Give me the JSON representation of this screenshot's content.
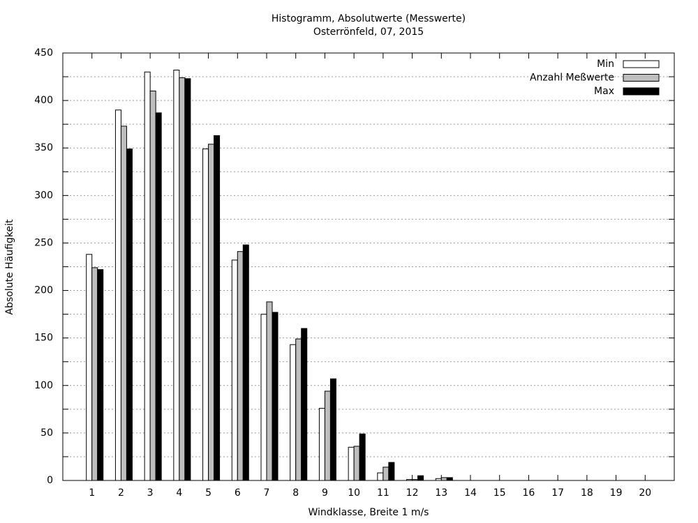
{
  "chart_data": {
    "type": "bar",
    "title": "Histogramm, Absolutwerte (Messwerte)",
    "subtitle": "Osterrönfeld, 07, 2015",
    "x_label": "Windklasse, Breite 1 m/s",
    "y_label": "Absolute Häufigkeit",
    "x": [
      1,
      2,
      3,
      4,
      5,
      6,
      7,
      8,
      9,
      10,
      11,
      12,
      13,
      14,
      15,
      16,
      17,
      18,
      19,
      20
    ],
    "xlim": [
      0,
      21
    ],
    "xticks": [
      1,
      2,
      3,
      4,
      5,
      6,
      7,
      8,
      9,
      10,
      11,
      12,
      13,
      14,
      15,
      16,
      17,
      18,
      19,
      20
    ],
    "ylim": [
      0,
      450
    ],
    "yticks": [
      0,
      50,
      100,
      150,
      200,
      250,
      300,
      350,
      400,
      450
    ],
    "yminorticks": [
      25,
      75,
      125,
      175,
      225,
      275,
      325,
      375,
      425
    ],
    "grid": true,
    "legend": "top-right",
    "series": [
      {
        "name": "Min",
        "color": "#ffffff",
        "values": [
          238,
          390,
          430,
          432,
          349,
          232,
          175,
          143,
          76,
          35,
          8,
          1,
          2,
          0,
          0,
          0,
          0,
          0,
          0,
          0
        ]
      },
      {
        "name": "Anzahl Meßwerte",
        "color": "#bebebe",
        "values": [
          224,
          373,
          410,
          424,
          354,
          241,
          188,
          149,
          94,
          36,
          14,
          1,
          3,
          0,
          0,
          0,
          0,
          0,
          0,
          0
        ]
      },
      {
        "name": "Max",
        "color": "#000000",
        "values": [
          222,
          349,
          387,
          423,
          363,
          248,
          177,
          160,
          107,
          49,
          19,
          5,
          3,
          0,
          0,
          0,
          0,
          0,
          0,
          0
        ]
      }
    ]
  }
}
